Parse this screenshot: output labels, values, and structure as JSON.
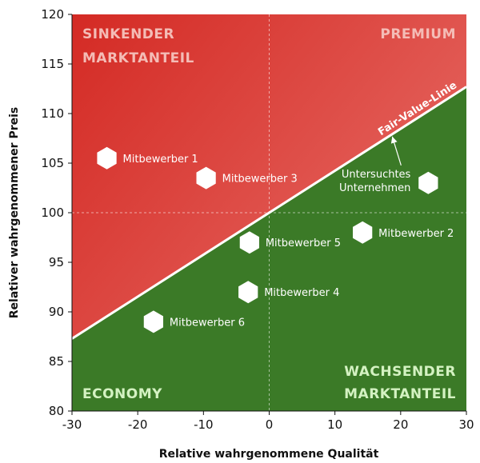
{
  "chart_data": {
    "type": "scatter",
    "xlabel": "Relative wahrgenommene Qualität",
    "ylabel": "Relativer wahrgenommener Preis",
    "xlim": [
      -30,
      30
    ],
    "ylim": [
      80,
      120
    ],
    "xticks": [
      -30,
      -20,
      -10,
      0,
      10,
      20,
      30
    ],
    "yticks": [
      80,
      85,
      90,
      95,
      100,
      105,
      110,
      115,
      120
    ],
    "points": [
      {
        "label": "Mitbewerber 1",
        "x": -24.7,
        "y": 105.5
      },
      {
        "label": "Mitbewerber 3",
        "x": -9.6,
        "y": 103.5
      },
      {
        "label": "Mitbewerber 5",
        "x": -3.0,
        "y": 97.0
      },
      {
        "label": "Mitbewerber 2",
        "x": 14.2,
        "y": 98.0
      },
      {
        "label": "Mitbewerber 4",
        "x": -3.2,
        "y": 92.0
      },
      {
        "label": "Mitbewerber 6",
        "x": -17.6,
        "y": 89.0
      },
      {
        "label": "Untersuchtes Unternehmen",
        "label_lines": [
          "Untersuchtes",
          "Unternehmen"
        ],
        "x": 24.2,
        "y": 103.0
      }
    ],
    "fair_value_line": {
      "label": "Fair-Value-Linie",
      "from": [
        -30,
        87.3
      ],
      "to": [
        30,
        112.7
      ]
    },
    "zones": {
      "top_left": [
        "SINKENDER",
        "MARKTANTEIL"
      ],
      "top_right": [
        "PREMIUM"
      ],
      "bottom_left": [
        "ECONOMY"
      ],
      "bottom_right": [
        "WACHSENDER",
        "MARKTANTEIL"
      ]
    },
    "colors": {
      "red_dark": "#d42a24",
      "red_light": "#e8706a",
      "green": "#3b7a27",
      "zone_top": "#f4bcb6",
      "zone_bottom": "#d4f2c2"
    }
  }
}
